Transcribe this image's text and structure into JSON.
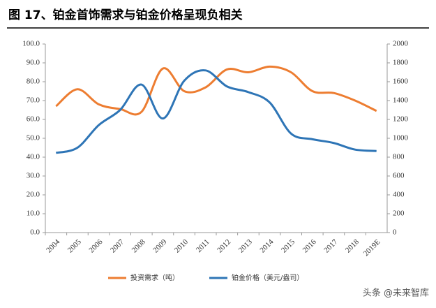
{
  "chart_data": {
    "type": "line",
    "title": "图 17、铂金首饰需求与铂金价格呈现负相关",
    "categories": [
      "2004",
      "2005",
      "2006",
      "2007",
      "2008",
      "2009",
      "2010",
      "2011",
      "2012",
      "2013",
      "2014",
      "2015",
      "2016",
      "2017",
      "2018",
      "2019E"
    ],
    "series": [
      {
        "name": "投资需求（吨）",
        "color": "#ED7D31",
        "values": [
          67,
          76,
          68,
          65.5,
          64,
          87,
          75,
          77,
          86.5,
          85,
          88,
          85,
          75,
          74,
          70,
          64.5
        ]
      },
      {
        "name": "铂金价格（美元/盎司）",
        "color": "#2E75B6",
        "axis": "y2",
        "values": [
          845,
          900,
          1140,
          1300,
          1570,
          1210,
          1610,
          1720,
          1550,
          1490,
          1380,
          1050,
          990,
          950,
          880,
          865
        ]
      }
    ],
    "ylim": [
      0,
      100
    ],
    "yticks": [
      {
        "value": 0,
        "label": "0.0"
      },
      {
        "value": 10,
        "label": "10.0"
      },
      {
        "value": 20,
        "label": "20.0"
      },
      {
        "value": 30,
        "label": "30.0"
      },
      {
        "value": 40,
        "label": "40.0"
      },
      {
        "value": 50,
        "label": "50.0"
      },
      {
        "value": 60,
        "label": "60.0"
      },
      {
        "value": 70,
        "label": "70.0"
      },
      {
        "value": 80,
        "label": "80.0"
      },
      {
        "value": 90,
        "label": "90.0"
      },
      {
        "value": 100,
        "label": "100.0"
      }
    ],
    "y2lim": [
      0,
      2000
    ],
    "y2ticks": [
      0,
      200,
      400,
      600,
      800,
      1000,
      1200,
      1400,
      1600,
      1800,
      2000
    ],
    "watermark": "头条 @未来智库"
  }
}
